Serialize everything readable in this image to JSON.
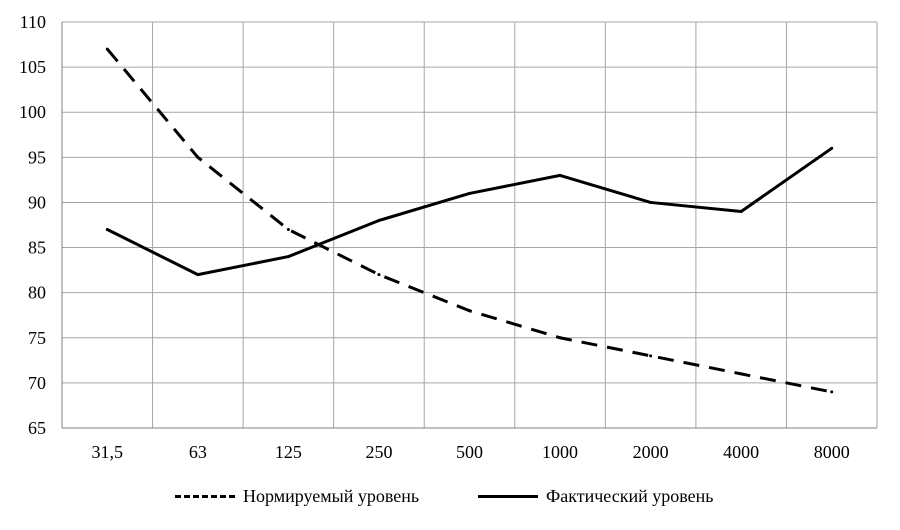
{
  "chart_data": {
    "type": "line",
    "categories": [
      "31,5",
      "63",
      "125",
      "250",
      "500",
      "1000",
      "2000",
      "4000",
      "8000"
    ],
    "series": [
      {
        "name": "Нормируемый уровень",
        "style": "dashed",
        "color": "#000000",
        "values": [
          107,
          95,
          87,
          82,
          78,
          75,
          73,
          71,
          69
        ]
      },
      {
        "name": "Фактический уровень",
        "style": "solid",
        "color": "#000000",
        "values": [
          87,
          82,
          84,
          88,
          91,
          93,
          90,
          89,
          96
        ]
      }
    ],
    "ylim": [
      65,
      110
    ],
    "yticks": [
      65,
      70,
      75,
      80,
      85,
      90,
      95,
      100,
      105,
      110
    ],
    "grid": true,
    "legend_position": "bottom",
    "title": "",
    "xlabel": "",
    "ylabel": ""
  }
}
